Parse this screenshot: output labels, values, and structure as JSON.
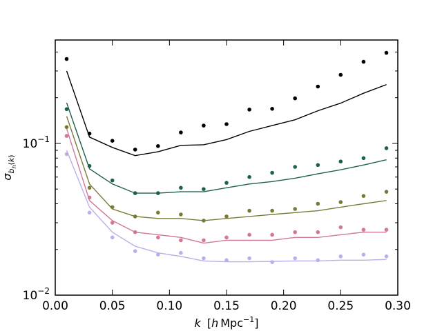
{
  "chart_data": {
    "type": "scatter",
    "title": "",
    "xlabel": "k [h Mpc⁻¹]",
    "ylabel": "σ_{b_h(k)}",
    "xlim": [
      0.0,
      0.3
    ],
    "ylim": [
      0.01,
      0.48
    ],
    "yscale": "log",
    "xticks": [
      0.0,
      0.05,
      0.1,
      0.15,
      0.2,
      0.25,
      0.3
    ],
    "xtick_labels": [
      "0.00",
      "0.05",
      "0.10",
      "0.15",
      "0.20",
      "0.25",
      "0.30"
    ],
    "ytick_labels": [
      {
        "value": 0.1,
        "base": "10",
        "exp": "−1"
      },
      {
        "value": 0.01,
        "base": "10",
        "exp": "−2"
      }
    ],
    "x": [
      0.01,
      0.03,
      0.05,
      0.07,
      0.09,
      0.11,
      0.13,
      0.15,
      0.17,
      0.19,
      0.21,
      0.23,
      0.25,
      0.27,
      0.29
    ],
    "series": [
      {
        "name": "black",
        "color": "#000000",
        "points": [
          0.36,
          0.116,
          0.104,
          0.091,
          0.096,
          0.118,
          0.131,
          0.134,
          0.167,
          0.169,
          0.198,
          0.237,
          0.283,
          0.345,
          0.395
        ],
        "line": [
          0.3,
          0.11,
          0.094,
          0.083,
          0.088,
          0.097,
          0.098,
          0.106,
          0.12,
          0.131,
          0.143,
          0.164,
          0.184,
          0.214,
          0.244
        ]
      },
      {
        "name": "dark green",
        "color": "#1e6146",
        "points": [
          0.168,
          0.071,
          0.057,
          0.047,
          0.047,
          0.051,
          0.05,
          0.055,
          0.06,
          0.064,
          0.07,
          0.072,
          0.076,
          0.08,
          0.093
        ],
        "line": [
          0.185,
          0.068,
          0.054,
          0.047,
          0.047,
          0.048,
          0.048,
          0.051,
          0.054,
          0.056,
          0.059,
          0.063,
          0.067,
          0.072,
          0.078
        ]
      },
      {
        "name": "olive",
        "color": "#7a7a37",
        "points": [
          0.128,
          0.051,
          0.038,
          0.033,
          0.035,
          0.034,
          0.031,
          0.033,
          0.036,
          0.036,
          0.037,
          0.04,
          0.041,
          0.045,
          0.048
        ],
        "line": [
          0.151,
          0.054,
          0.037,
          0.033,
          0.032,
          0.032,
          0.031,
          0.032,
          0.033,
          0.034,
          0.035,
          0.036,
          0.038,
          0.04,
          0.042
        ]
      },
      {
        "name": "pink",
        "color": "#cf7898",
        "points": [
          0.112,
          0.044,
          0.03,
          0.026,
          0.024,
          0.023,
          0.023,
          0.024,
          0.025,
          0.025,
          0.026,
          0.026,
          0.028,
          0.027,
          0.027
        ],
        "line": [
          0.125,
          0.042,
          0.031,
          0.026,
          0.025,
          0.024,
          0.022,
          0.023,
          0.023,
          0.023,
          0.024,
          0.024,
          0.025,
          0.026,
          0.026
        ]
      },
      {
        "name": "lavender",
        "color": "#bcaeea",
        "points": [
          0.085,
          0.035,
          0.024,
          0.0195,
          0.0185,
          0.019,
          0.0175,
          0.017,
          0.0175,
          0.0165,
          0.0175,
          0.017,
          0.018,
          0.0185,
          0.018
        ],
        "line": [
          0.09,
          0.038,
          0.026,
          0.021,
          0.019,
          0.018,
          0.0168,
          0.0166,
          0.0166,
          0.0167,
          0.0168,
          0.0168,
          0.017,
          0.017,
          0.0172
        ]
      }
    ]
  }
}
